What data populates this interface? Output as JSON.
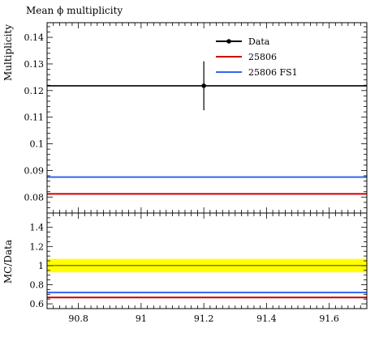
{
  "chart_data": [
    {
      "type": "line",
      "title": "Mean ϕ multiplicity",
      "ylabel": "Multiplicity",
      "xlim": [
        90.7,
        91.72
      ],
      "ylim": [
        0.074,
        0.1455
      ],
      "yticks": [
        "0.08",
        "0.09",
        "0.1",
        "0.11",
        "0.12",
        "0.13",
        "0.14"
      ],
      "grid": false,
      "legend_position": "top-right",
      "series": [
        {
          "name": "Data",
          "kind": "point",
          "x": 91.2,
          "y": 0.1218,
          "yerr": [
            0.0092,
            0.0092
          ],
          "hline": 0.1218,
          "color": "#000000"
        },
        {
          "name": "25806",
          "kind": "constant",
          "y": 0.0812,
          "color": "#cc0000"
        },
        {
          "name": "25806 FS1",
          "kind": "constant",
          "y": 0.0875,
          "color": "#3366ee"
        }
      ]
    },
    {
      "type": "line",
      "ylabel": "MC/Data",
      "xlim": [
        90.7,
        91.72
      ],
      "ylim": [
        0.55,
        1.55
      ],
      "yticks": [
        "0.6",
        "0.8",
        "1",
        "1.2",
        "1.4"
      ],
      "xticks": [
        "90.8",
        "91",
        "91.2",
        "91.4",
        "91.6"
      ],
      "band": {
        "lower": 0.93,
        "upper": 1.07,
        "color": "#ffff00"
      },
      "series": [
        {
          "name": "25806",
          "y": 0.666,
          "color": "#cc0000"
        },
        {
          "name": "25806 FS1",
          "y": 0.718,
          "color": "#3366ee"
        }
      ]
    }
  ]
}
